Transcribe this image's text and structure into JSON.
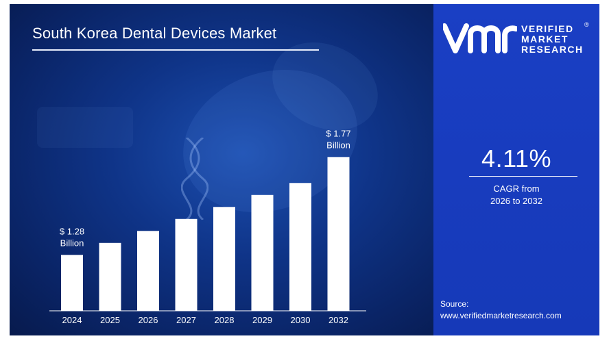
{
  "chart_data": {
    "type": "bar",
    "title": "South Korea Dental Devices Market",
    "categories": [
      "2024",
      "2025",
      "2026",
      "2027",
      "2028",
      "2029",
      "2030",
      "2032"
    ],
    "values": [
      1.28,
      1.34,
      1.4,
      1.46,
      1.52,
      1.58,
      1.64,
      1.77
    ],
    "ylim": [
      1.0,
      1.85
    ],
    "unit": "Billion",
    "annotations": [
      {
        "category": "2024",
        "line1": "$ 1.28",
        "line2": "Billion"
      },
      {
        "category": "2032",
        "line1": "$ 1.77",
        "line2": "Billion"
      }
    ],
    "grid": false,
    "legend": "none",
    "bar_color": "#ffffff"
  },
  "brand": {
    "line1": "VERIFIED",
    "line2": "MARKET",
    "line3": "RESEARCH",
    "reg": "®",
    "logo_icon": "vmr-logo-icon"
  },
  "cagr": {
    "value": "4.11%",
    "label_line1": "CAGR from",
    "label_line2": "2026 to 2032"
  },
  "source": {
    "label": "Source:",
    "url": "www.verifiedmarketresearch.com"
  },
  "colors": {
    "chart_bg": "#0f3488",
    "info_bg": "#1a3fc4",
    "text": "#ffffff"
  }
}
